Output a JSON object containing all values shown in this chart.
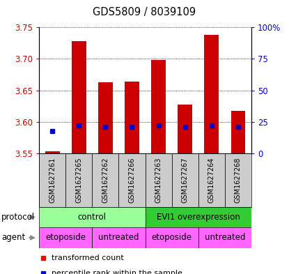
{
  "title": "GDS5809 / 8039109",
  "samples": [
    "GSM1627261",
    "GSM1627265",
    "GSM1627262",
    "GSM1627266",
    "GSM1627263",
    "GSM1627267",
    "GSM1627264",
    "GSM1627268"
  ],
  "transformed_counts": [
    3.553,
    3.728,
    3.663,
    3.664,
    3.698,
    3.628,
    3.738,
    3.618
  ],
  "percentile_ranks_pct": [
    18,
    22,
    21,
    21,
    22,
    21,
    22,
    21
  ],
  "bar_bottom": 3.55,
  "ylim": [
    3.55,
    3.75
  ],
  "y2lim": [
    0,
    100
  ],
  "yticks": [
    3.55,
    3.6,
    3.65,
    3.7,
    3.75
  ],
  "y2ticks": [
    0,
    25,
    50,
    75,
    100
  ],
  "bar_color": "#cc0000",
  "dot_color": "#0000cc",
  "bar_width": 0.55,
  "protocol_groups": [
    {
      "label": "control",
      "start": 0,
      "end": 3,
      "color": "#99ff99"
    },
    {
      "label": "EVI1 overexpression",
      "start": 4,
      "end": 7,
      "color": "#33cc33"
    }
  ],
  "agent_groups": [
    {
      "label": "etoposide",
      "start": 0,
      "end": 1,
      "color": "#ff66ff"
    },
    {
      "label": "untreated",
      "start": 2,
      "end": 3,
      "color": "#ff66ff"
    },
    {
      "label": "etoposide",
      "start": 4,
      "end": 5,
      "color": "#ff66ff"
    },
    {
      "label": "untreated",
      "start": 6,
      "end": 7,
      "color": "#ff66ff"
    }
  ],
  "legend_red": "transformed count",
  "legend_blue": "percentile rank within the sample",
  "tick_color_left": "#cc0000",
  "tick_color_right": "#0000cc",
  "sample_bg": "#cccccc",
  "protocol_label": "protocol",
  "agent_label": "agent"
}
